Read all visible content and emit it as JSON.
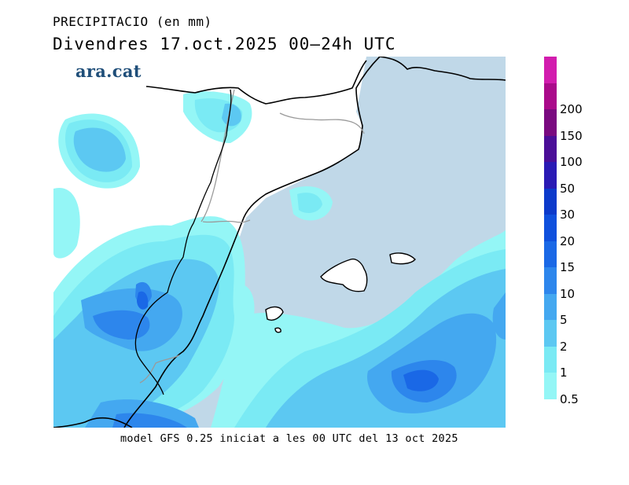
{
  "header": {
    "variable": "PRECIPITACIO (en mm)",
    "date_line": "Divendres  17.oct.2025 00—24h UTC",
    "logo": "ara.cat"
  },
  "footer": {
    "model_note": "model GFS 0.25 iniciat a les 00 UTC del 13 oct 2025"
  },
  "map": {
    "region": "Catalonia, Valencian coast and Balearic Islands",
    "sea_color": "#c0d8e8",
    "land_color": "#ffffff"
  },
  "legend": {
    "unit": "mm",
    "bins": [
      {
        "label": "0.5",
        "color": "#94f6f6"
      },
      {
        "label": "1",
        "color": "#7aeaf4"
      },
      {
        "label": "2",
        "color": "#5cc8f2"
      },
      {
        "label": "5",
        "color": "#44a8f0"
      },
      {
        "label": "10",
        "color": "#2d86ec"
      },
      {
        "label": "15",
        "color": "#1a68e6"
      },
      {
        "label": "20",
        "color": "#0f50dd"
      },
      {
        "label": "30",
        "color": "#0c3acb"
      },
      {
        "label": "50",
        "color": "#2a1ab4"
      },
      {
        "label": "100",
        "color": "#4b0e98"
      },
      {
        "label": "150",
        "color": "#7a0a80"
      },
      {
        "label": "200",
        "color": "#aa0a8a"
      },
      {
        "label": "",
        "color": "#d21cae"
      }
    ]
  }
}
